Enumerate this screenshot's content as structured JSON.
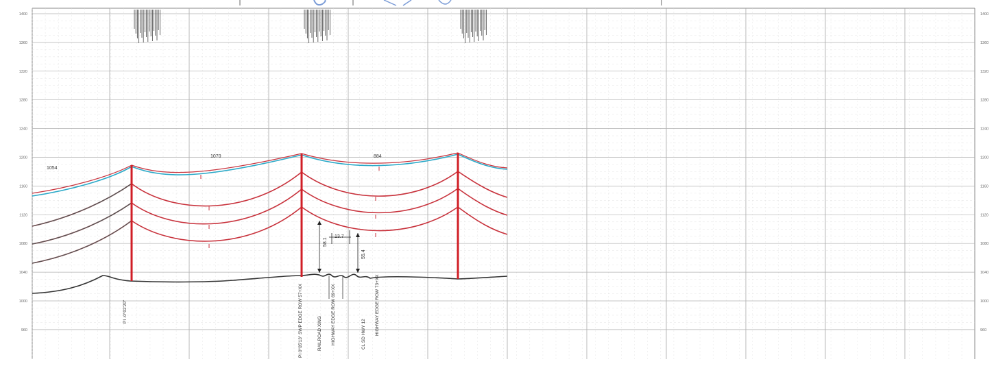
{
  "profile": {
    "elevation_labels": [
      "1400",
      "1360",
      "1320",
      "1280",
      "1240",
      "1200",
      "1160",
      "1120",
      "1080",
      "1040",
      "1000",
      "960"
    ],
    "span_labels": [
      "1054",
      "1070",
      "884"
    ],
    "clearance_labels": [
      "58.1",
      "13.7",
      "55.4"
    ],
    "pole_labels": [
      "PI -0°02'20\"",
      "PI 0°05'13\" SWP EDGE ROW 57+XX",
      "RAILROAD XING",
      "HIGHWAY EDGE ROW 69+XX",
      "CL SD HWY 12",
      "HIGHWAY EDGE ROW 73+XX"
    ],
    "colors": {
      "grid": "#b8b8b8",
      "conductor": "#c8323c",
      "shield_wire": "#2aa9c8",
      "structure": "#d01e26",
      "ground": "#333333"
    }
  }
}
